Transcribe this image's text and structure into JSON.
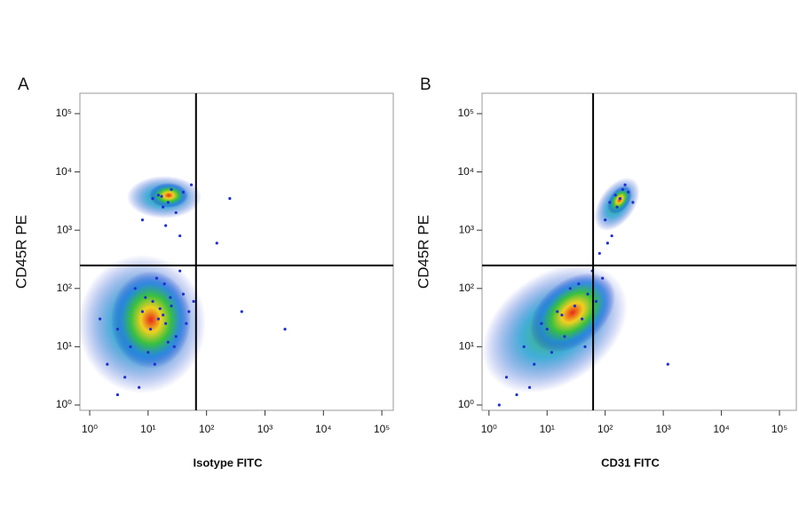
{
  "chart_data": [
    {
      "type": "scatter",
      "panel": "A",
      "xlabel": "Isotype FITC",
      "ylabel": "CD45R PE",
      "log_x": true,
      "log_y": true,
      "color": "#1f2fd0",
      "xlim": [
        0.68,
        157000
      ],
      "ylim": [
        0.81,
        224000
      ],
      "xticks": [
        {
          "value": 1,
          "label": "10⁰"
        },
        {
          "value": 10,
          "label": "10¹"
        },
        {
          "value": 100,
          "label": "10²"
        },
        {
          "value": 1000,
          "label": "10³"
        },
        {
          "value": 10000,
          "label": "10⁴"
        },
        {
          "value": 100000,
          "label": "10⁵"
        }
      ],
      "yticks": [
        {
          "value": 1,
          "label": "10⁰"
        },
        {
          "value": 10,
          "label": "10¹"
        },
        {
          "value": 100,
          "label": "10²"
        },
        {
          "value": 1000,
          "label": "10³"
        },
        {
          "value": 10000,
          "label": "10⁴"
        },
        {
          "value": 100000,
          "label": "10⁵"
        }
      ],
      "quadrant_gate": {
        "x": 66,
        "y": 248
      },
      "x": [
        3,
        5,
        8,
        12,
        15,
        20,
        25,
        30,
        40,
        50,
        2,
        4,
        6,
        10,
        14,
        18,
        22,
        35,
        60,
        1.5,
        7,
        9,
        11,
        16,
        28,
        45,
        3,
        13,
        19,
        24,
        12,
        15,
        18,
        22,
        25,
        30,
        8,
        40,
        55,
        20,
        17,
        35,
        250,
        400,
        2200,
        150
      ],
      "y": [
        20,
        10,
        40,
        60,
        30,
        25,
        50,
        15,
        80,
        40,
        5,
        3,
        100,
        8,
        150,
        35,
        12,
        200,
        60,
        30,
        2,
        70,
        20,
        45,
        10,
        25,
        1.5,
        5,
        120,
        70,
        3500,
        4000,
        2500,
        3000,
        5000,
        2000,
        1500,
        4500,
        6000,
        1200,
        3800,
        800,
        3500,
        40,
        20,
        600
      ]
    },
    {
      "type": "scatter",
      "panel": "B",
      "xlabel": "CD31 FITC",
      "ylabel": "CD45R PE",
      "log_x": true,
      "log_y": true,
      "color": "#1f2fd0",
      "xlim": [
        0.76,
        195000
      ],
      "ylim": [
        0.81,
        224000
      ],
      "xticks": [
        {
          "value": 1,
          "label": "10⁰"
        },
        {
          "value": 10,
          "label": "10¹"
        },
        {
          "value": 100,
          "label": "10²"
        },
        {
          "value": 1000,
          "label": "10³"
        },
        {
          "value": 10000,
          "label": "10⁴"
        },
        {
          "value": 100000,
          "label": "10⁵"
        }
      ],
      "yticks": [
        {
          "value": 1,
          "label": "10⁰"
        },
        {
          "value": 10,
          "label": "10¹"
        },
        {
          "value": 100,
          "label": "10²"
        },
        {
          "value": 1000,
          "label": "10³"
        },
        {
          "value": 10000,
          "label": "10⁴"
        },
        {
          "value": 100000,
          "label": "10⁵"
        }
      ],
      "quadrant_gate": {
        "x": 62,
        "y": 248
      },
      "x": [
        2,
        4,
        6,
        10,
        15,
        20,
        30,
        40,
        50,
        70,
        3,
        8,
        12,
        25,
        35,
        60,
        90,
        5,
        18,
        45,
        120,
        150,
        180,
        200,
        250,
        100,
        130,
        160,
        220,
        300,
        80,
        110,
        1.5,
        1200
      ],
      "y": [
        3,
        10,
        5,
        20,
        40,
        15,
        50,
        30,
        80,
        60,
        1.5,
        25,
        8,
        100,
        120,
        200,
        150,
        2,
        35,
        10,
        3000,
        4000,
        3500,
        5000,
        4500,
        1500,
        800,
        2500,
        6000,
        3000,
        400,
        600,
        1,
        5
      ]
    }
  ]
}
